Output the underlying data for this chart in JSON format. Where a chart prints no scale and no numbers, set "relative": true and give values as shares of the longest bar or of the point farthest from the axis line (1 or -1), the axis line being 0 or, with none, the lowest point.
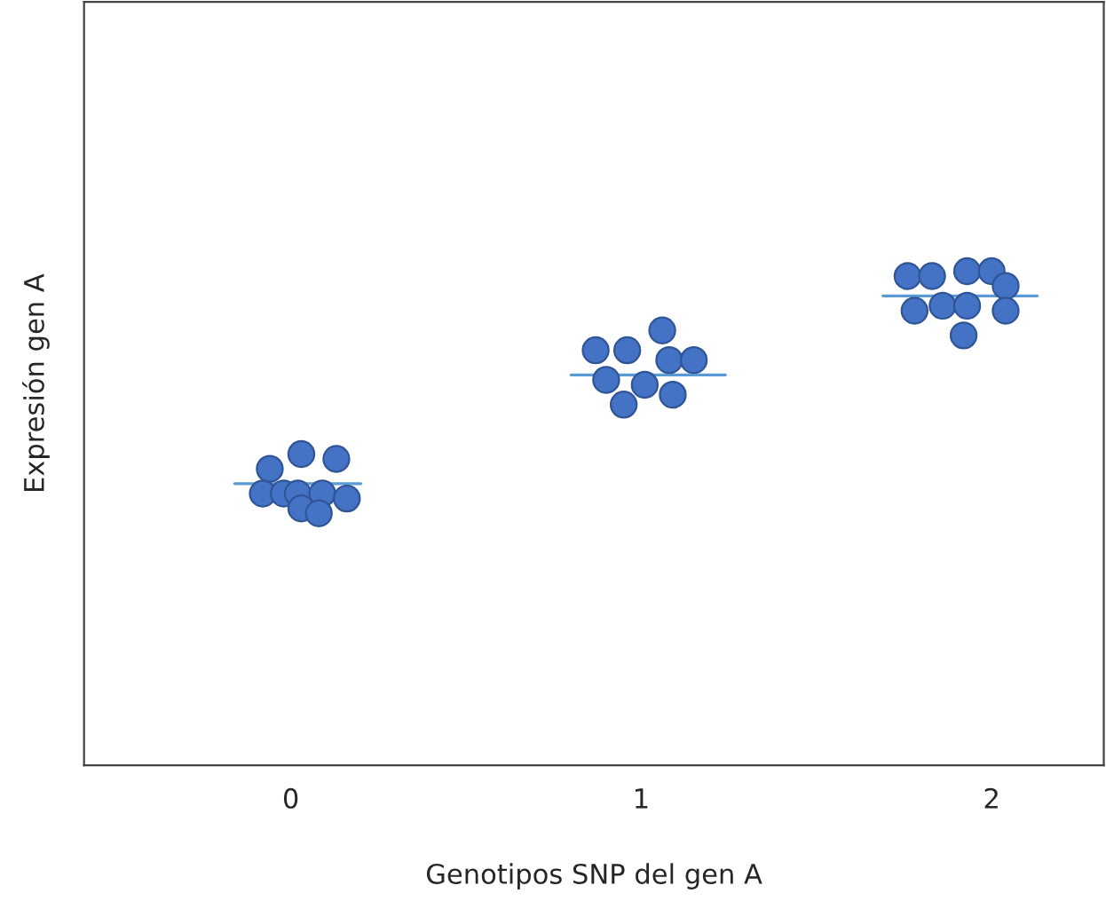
{
  "chart_data": {
    "type": "scatter",
    "relative": true,
    "xlabel": "Genotipos SNP del gen A",
    "ylabel": "Expresión gen A",
    "xlim": [
      -0.59,
      2.32
    ],
    "xticks": [
      0,
      1,
      2
    ],
    "grid": false,
    "legend": false,
    "series": [
      {
        "marker": "circle",
        "color": "#4472c4",
        "x": [
          -0.06,
          0.03,
          0.13,
          -0.08,
          -0.02,
          0.02,
          0.09,
          0.16,
          0.03,
          0.08,
          0.87,
          0.96,
          1.06,
          0.9,
          1.01,
          1.08,
          1.15,
          0.95,
          1.09,
          1.76,
          1.83,
          1.93,
          2.0,
          2.04,
          1.78,
          1.86,
          1.93,
          2.04,
          1.92
        ],
        "values": [
          0.6,
          0.63,
          0.62,
          0.55,
          0.55,
          0.55,
          0.55,
          0.54,
          0.52,
          0.51,
          0.84,
          0.84,
          0.88,
          0.78,
          0.77,
          0.82,
          0.82,
          0.73,
          0.75,
          0.99,
          0.99,
          1.0,
          1.0,
          0.97,
          0.92,
          0.93,
          0.93,
          0.92,
          0.87
        ]
      },
      {
        "type": "line",
        "color": "#5b9bd5",
        "x": [
          -0.16,
          0.2
        ],
        "values": [
          0.57,
          0.57
        ]
      },
      {
        "type": "line",
        "color": "#5b9bd5",
        "x": [
          0.8,
          1.24
        ],
        "values": [
          0.79,
          0.79
        ]
      },
      {
        "type": "line",
        "color": "#5b9bd5",
        "x": [
          1.69,
          2.13
        ],
        "values": [
          0.95,
          0.95
        ]
      }
    ]
  }
}
